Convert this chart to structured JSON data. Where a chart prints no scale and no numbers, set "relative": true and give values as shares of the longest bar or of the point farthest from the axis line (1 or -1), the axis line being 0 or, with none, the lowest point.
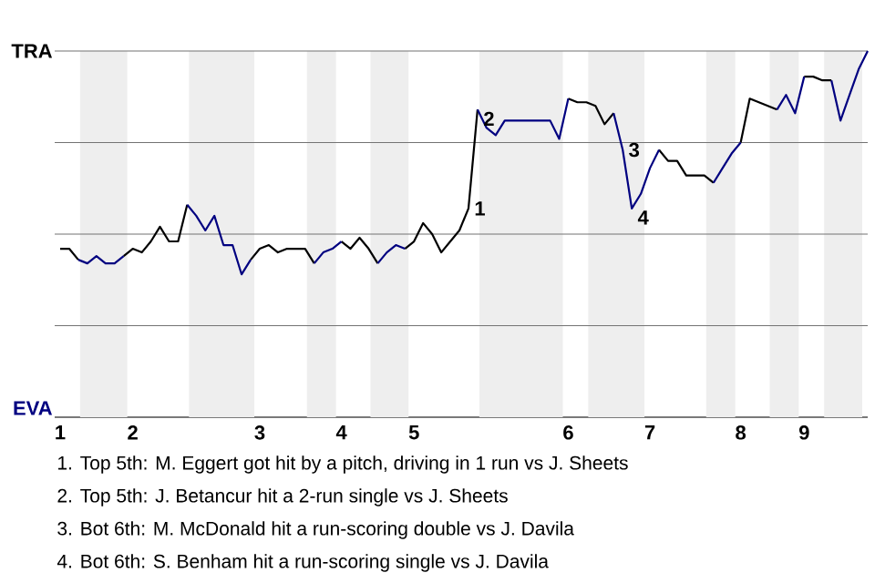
{
  "chart_data": {
    "type": "line",
    "relative": true,
    "categories": [
      "1",
      null,
      null,
      null,
      null,
      null,
      null,
      null,
      "2",
      null,
      null,
      null,
      null,
      null,
      null,
      null,
      null,
      null,
      null,
      null,
      null,
      null,
      "3",
      null,
      null,
      null,
      null,
      null,
      null,
      null,
      null,
      "4",
      null,
      null,
      null,
      null,
      null,
      null,
      null,
      "5",
      null,
      null,
      null,
      null,
      null,
      null,
      null,
      null,
      null,
      null,
      null,
      null,
      null,
      null,
      null,
      null,
      "6",
      null,
      null,
      null,
      null,
      null,
      null,
      null,
      null,
      "7",
      null,
      null,
      null,
      null,
      null,
      null,
      null,
      null,
      null,
      "8",
      null,
      null,
      null,
      null,
      null,
      null,
      "9",
      null,
      null,
      null,
      null,
      null,
      null,
      null
    ],
    "grid": "y",
    "marker": "none",
    "line_style": "solid",
    "series": [
      {
        "color": "#000000",
        "values": [
          0.46,
          0.46,
          0.43,
          null,
          null,
          null,
          null,
          0.44,
          0.46,
          0.45,
          0.48,
          0.52,
          0.48,
          0.48,
          0.58,
          null,
          null,
          null,
          null,
          null,
          null,
          0.43,
          0.46,
          0.47,
          0.45,
          0.46,
          0.46,
          0.46,
          0.42,
          null,
          null,
          0.48,
          0.46,
          0.49,
          0.46,
          0.42,
          null,
          null,
          0.46,
          0.48,
          0.53,
          0.5,
          0.45,
          0.48,
          0.51,
          0.57,
          0.84,
          null,
          null,
          null,
          null,
          null,
          null,
          null,
          null,
          null,
          0.87,
          0.86,
          0.86,
          0.85,
          0.8,
          0.83,
          null,
          null,
          null,
          null,
          0.73,
          0.7,
          0.7,
          0.66,
          0.66,
          0.66,
          0.64,
          null,
          null,
          0.75,
          0.87,
          0.86,
          0.85,
          0.84,
          null,
          null,
          0.93,
          0.93,
          0.92,
          0.92,
          null,
          null,
          null,
          null
        ]
      },
      {
        "color": "#000080",
        "values": [
          null,
          null,
          0.43,
          0.42,
          0.44,
          0.42,
          0.42,
          0.44,
          null,
          null,
          null,
          null,
          null,
          null,
          0.58,
          0.55,
          0.51,
          0.55,
          0.47,
          0.47,
          0.39,
          0.43,
          null,
          null,
          null,
          null,
          null,
          null,
          0.42,
          0.45,
          0.46,
          0.48,
          null,
          null,
          null,
          0.42,
          0.45,
          0.47,
          0.46,
          null,
          null,
          null,
          null,
          null,
          null,
          null,
          0.84,
          0.79,
          0.77,
          0.81,
          0.81,
          0.81,
          0.81,
          0.81,
          0.81,
          0.76,
          0.87,
          null,
          null,
          null,
          null,
          0.83,
          0.73,
          0.57,
          0.61,
          0.68,
          0.73,
          null,
          null,
          null,
          null,
          null,
          0.64,
          0.68,
          0.72,
          0.75,
          null,
          null,
          null,
          0.84,
          0.88,
          0.83,
          0.93,
          null,
          null,
          0.92,
          0.81,
          0.88,
          0.95,
          1.0
        ]
      }
    ],
    "annotations": [
      "TRA",
      "EVA",
      "1",
      "2",
      "3",
      "4",
      "1. Top 5th: M. Eggert got hit by a pitch, driving in 1 run vs J. Sheets",
      "2. Top 5th: J. Betancur hit a 2-run single vs J. Sheets",
      "3. Bot 6th: M. McDonald hit a run-scoring double vs J. Davila",
      "4. Bot 6th: S. Benham hit a run-scoring single vs J. Davila"
    ]
  }
}
